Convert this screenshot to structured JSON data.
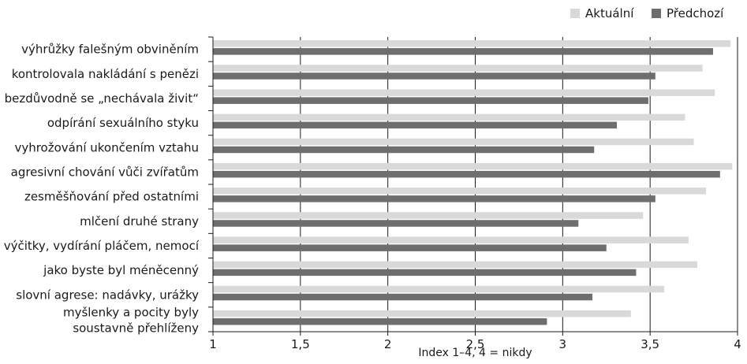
{
  "chart_data": {
    "type": "bar",
    "orientation": "horizontal",
    "categories": [
      "výhrůžky falešným obviněním",
      "kontrolovala nakládání s penězi",
      "bezdůvodně se „nechávala živit“",
      "odpírání sexuálního styku",
      "vyhrožování ukončením vztahu",
      "agresivní chování vůči zvířatům",
      "zesměšňování před ostatními",
      "mlčení druhé strany",
      "výčitky, vydírání pláčem, nemocí",
      "jako byste byl méněcenný",
      "slovní agrese: nadávky, urážky",
      [
        "myšlenky a pocity byly",
        "soustavně přehlíženy"
      ]
    ],
    "series": [
      {
        "name": "Aktuální",
        "color": "#d9d9d9",
        "values": [
          3.96,
          3.8,
          3.87,
          3.7,
          3.75,
          3.97,
          3.82,
          3.46,
          3.72,
          3.77,
          3.58,
          3.39
        ]
      },
      {
        "name": "Předchozí",
        "color": "#6e6e6e",
        "values": [
          3.86,
          3.53,
          3.49,
          3.31,
          3.18,
          3.9,
          3.53,
          3.09,
          3.25,
          3.42,
          3.17,
          2.91
        ]
      }
    ],
    "xlim": [
      1,
      4
    ],
    "xticks": [
      "1",
      "1,5",
      "2",
      "2,5",
      "3",
      "3,5",
      "4"
    ],
    "xtick_values": [
      1,
      1.5,
      2,
      2.5,
      3,
      3.5,
      4
    ],
    "xlabel": "Index 1–4, 4 = nikdy",
    "legend_position": "top-right",
    "grid": "vertical"
  }
}
